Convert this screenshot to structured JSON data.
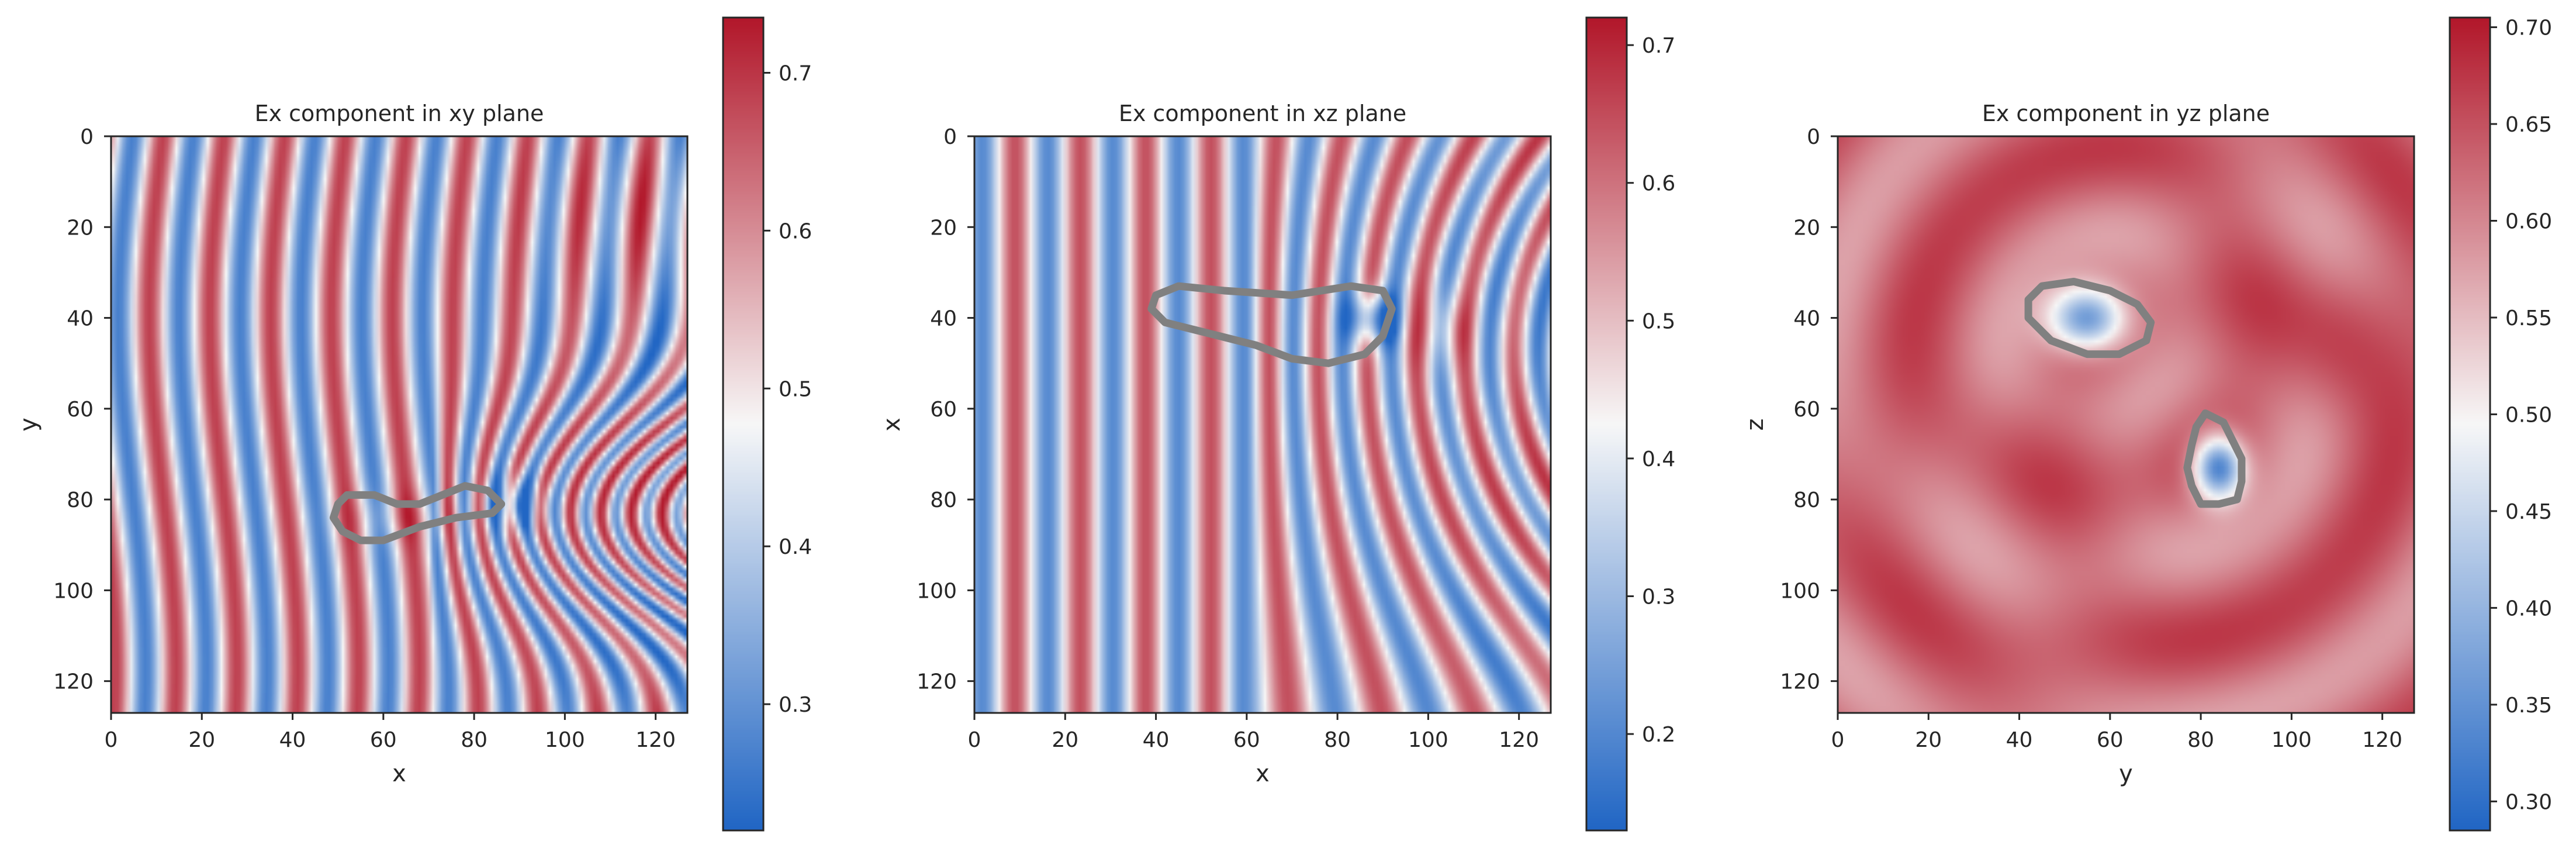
{
  "chart_data": [
    {
      "type": "heatmap",
      "title": "Ex component in xy plane",
      "xlabel": "x",
      "ylabel": "y",
      "xlim": [
        0,
        127
      ],
      "ylim": [
        127,
        0
      ],
      "xticks": [
        "0",
        "20",
        "40",
        "60",
        "80",
        "100",
        "120"
      ],
      "yticks": [
        "0",
        "20",
        "40",
        "60",
        "80",
        "100",
        "120"
      ],
      "colorbar": {
        "min": 0.22,
        "max": 0.735,
        "ticks": [
          "0.3",
          "0.4",
          "0.5",
          "0.6",
          "0.7"
        ],
        "tick_values": [
          0.3,
          0.4,
          0.5,
          0.6,
          0.7
        ]
      },
      "colormap": {
        "low": "#2166c4",
        "mid": "#f7f7f7",
        "high": "#b2182b"
      },
      "contour_color": "#808080",
      "field_description": "vertical wave stripes perturbed near a scatterer",
      "contours": [
        [
          [
            52,
            79
          ],
          [
            58,
            79
          ],
          [
            63,
            81
          ],
          [
            68,
            81
          ],
          [
            73,
            79
          ],
          [
            78,
            77
          ],
          [
            83,
            78
          ],
          [
            86,
            81
          ],
          [
            84,
            83
          ],
          [
            76,
            84
          ],
          [
            68,
            86
          ],
          [
            60,
            89
          ],
          [
            55,
            89
          ],
          [
            51,
            87
          ],
          [
            49,
            84
          ],
          [
            50,
            81
          ]
        ]
      ],
      "blobs": [
        {
          "x": 89,
          "y": 81,
          "amp": -0.2,
          "rx": 4,
          "ry": 4
        },
        {
          "x": 64,
          "y": 84,
          "amp": 0.05,
          "rx": 10,
          "ry": 4
        }
      ]
    },
    {
      "type": "heatmap",
      "title": "Ex component in xz plane",
      "xlabel": "x",
      "ylabel": "x",
      "xlim": [
        0,
        127
      ],
      "ylim": [
        127,
        0
      ],
      "xticks": [
        "0",
        "20",
        "40",
        "60",
        "80",
        "100",
        "120"
      ],
      "yticks": [
        "0",
        "20",
        "40",
        "60",
        "80",
        "100",
        "120"
      ],
      "colorbar": {
        "min": 0.13,
        "max": 0.72,
        "ticks": [
          "0.2",
          "0.3",
          "0.4",
          "0.5",
          "0.6",
          "0.7"
        ],
        "tick_values": [
          0.2,
          0.3,
          0.4,
          0.5,
          0.6,
          0.7
        ]
      },
      "colormap": {
        "low": "#2166c4",
        "mid": "#f7f7f7",
        "high": "#b2182b"
      },
      "contour_color": "#808080",
      "contours": [
        [
          [
            40,
            35
          ],
          [
            45,
            33
          ],
          [
            55,
            34
          ],
          [
            70,
            35
          ],
          [
            83,
            33
          ],
          [
            90,
            34
          ],
          [
            92,
            38
          ],
          [
            90,
            44
          ],
          [
            86,
            48
          ],
          [
            78,
            50
          ],
          [
            70,
            49
          ],
          [
            62,
            46
          ],
          [
            50,
            43
          ],
          [
            42,
            41
          ],
          [
            39,
            38
          ]
        ]
      ],
      "blobs": [
        {
          "x": 88,
          "y": 40,
          "amp": -0.32,
          "rx": 4,
          "ry": 4
        },
        {
          "x": 103,
          "y": 42,
          "amp": 0.12,
          "rx": 5,
          "ry": 6
        }
      ]
    },
    {
      "type": "heatmap",
      "title": "Ex component in yz plane",
      "xlabel": "y",
      "ylabel": "z",
      "xlim": [
        0,
        127
      ],
      "ylim": [
        127,
        0
      ],
      "xticks": [
        "0",
        "20",
        "40",
        "60",
        "80",
        "100",
        "120"
      ],
      "yticks": [
        "0",
        "20",
        "40",
        "60",
        "80",
        "100",
        "120"
      ],
      "colorbar": {
        "min": 0.285,
        "max": 0.705,
        "ticks": [
          "0.30",
          "0.35",
          "0.40",
          "0.45",
          "0.50",
          "0.55",
          "0.60",
          "0.65",
          "0.70"
        ],
        "tick_values": [
          0.3,
          0.35,
          0.4,
          0.45,
          0.5,
          0.55,
          0.6,
          0.65,
          0.7
        ]
      },
      "colormap": {
        "low": "#2166c4",
        "mid": "#f7f7f7",
        "high": "#b2182b"
      },
      "contour_color": "#808080",
      "contours": [
        [
          [
            45,
            33
          ],
          [
            52,
            32
          ],
          [
            60,
            34
          ],
          [
            66,
            37
          ],
          [
            69,
            41
          ],
          [
            68,
            45
          ],
          [
            62,
            48
          ],
          [
            55,
            48
          ],
          [
            47,
            45
          ],
          [
            42,
            40
          ],
          [
            42,
            36
          ]
        ],
        [
          [
            81,
            61
          ],
          [
            85,
            63
          ],
          [
            87,
            67
          ],
          [
            89,
            71
          ],
          [
            89,
            76
          ],
          [
            88,
            80
          ],
          [
            84,
            81
          ],
          [
            80,
            81
          ],
          [
            78,
            77
          ],
          [
            77,
            73
          ],
          [
            78,
            68
          ],
          [
            79,
            64
          ]
        ]
      ],
      "blobs": [
        {
          "x": 55,
          "y": 40,
          "amp": -0.3,
          "rx": 6,
          "ry": 5
        },
        {
          "x": 84,
          "y": 73,
          "amp": -0.33,
          "rx": 4,
          "ry": 5
        },
        {
          "x": 112,
          "y": 45,
          "amp": 0.05,
          "rx": 8,
          "ry": 12
        }
      ]
    }
  ]
}
